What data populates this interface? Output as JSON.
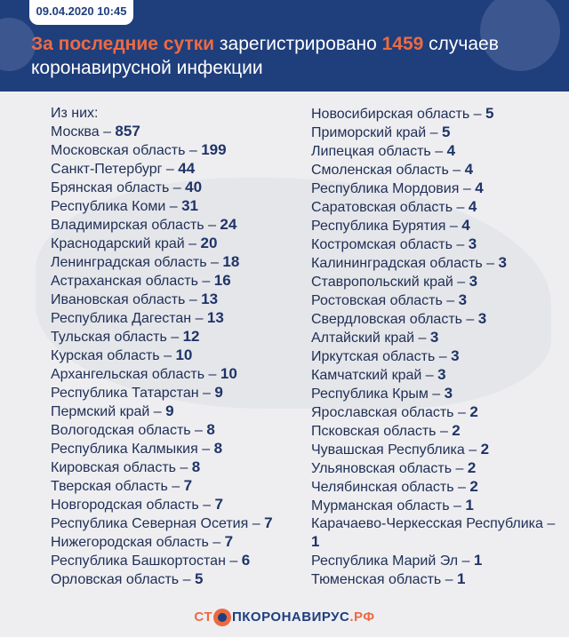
{
  "header": {
    "date": "09.04.2020 10:45",
    "title_accent": "За последние сутки",
    "title_mid": " зарегистрировано ",
    "count": "1459",
    "title_end": " случаев коронавирусной инфекции"
  },
  "intro": "Из них:",
  "left": [
    {
      "name": "Москва",
      "value": "857"
    },
    {
      "name": "Московская область",
      "value": "199"
    },
    {
      "name": "Санкт-Петербург",
      "value": "44"
    },
    {
      "name": "Брянская область",
      "value": "40"
    },
    {
      "name": "Республика Коми",
      "value": "31"
    },
    {
      "name": "Владимирская область",
      "value": "24"
    },
    {
      "name": "Краснодарский край",
      "value": "20"
    },
    {
      "name": "Ленинградская область",
      "value": "18"
    },
    {
      "name": "Астраханская область",
      "value": "16"
    },
    {
      "name": "Ивановская область",
      "value": "13"
    },
    {
      "name": "Республика Дагестан",
      "value": "13"
    },
    {
      "name": "Тульская область",
      "value": "12"
    },
    {
      "name": "Курская область",
      "value": "10"
    },
    {
      "name": "Архангельская область",
      "value": "10"
    },
    {
      "name": "Республика Татарстан",
      "value": "9"
    },
    {
      "name": "Пермский край",
      "value": "9"
    },
    {
      "name": "Вологодская область",
      "value": "8"
    },
    {
      "name": "Республика Калмыкия",
      "value": "8"
    },
    {
      "name": "Кировская область",
      "value": "8"
    },
    {
      "name": "Тверская область",
      "value": "7"
    },
    {
      "name": "Новгородская область",
      "value": "7"
    },
    {
      "name": "Республика Северная Осетия",
      "value": "7"
    },
    {
      "name": "Нижегородская область",
      "value": "7"
    },
    {
      "name": "Республика Башкортостан",
      "value": "6"
    },
    {
      "name": "Орловская область",
      "value": "5"
    }
  ],
  "right": [
    {
      "name": "Новосибирская область",
      "value": "5"
    },
    {
      "name": "Приморский край",
      "value": "5"
    },
    {
      "name": "Липецкая область",
      "value": "4"
    },
    {
      "name": "Смоленская область",
      "value": "4"
    },
    {
      "name": "Республика Мордовия",
      "value": "4"
    },
    {
      "name": "Саратовская область",
      "value": "4"
    },
    {
      "name": "Республика Бурятия",
      "value": "4"
    },
    {
      "name": "Костромская область",
      "value": "3"
    },
    {
      "name": "Калининградская область",
      "value": "3"
    },
    {
      "name": "Ставропольский край",
      "value": "3"
    },
    {
      "name": "Ростовская область",
      "value": "3"
    },
    {
      "name": "Свердловская область",
      "value": "3"
    },
    {
      "name": "Алтайский край",
      "value": "3"
    },
    {
      "name": "Иркутская область",
      "value": "3"
    },
    {
      "name": "Камчатский край",
      "value": "3"
    },
    {
      "name": "Республика Крым",
      "value": "3"
    },
    {
      "name": "Ярославская область",
      "value": "2"
    },
    {
      "name": "Псковская область",
      "value": "2"
    },
    {
      "name": "Чувашская Республика",
      "value": "2"
    },
    {
      "name": "Ульяновская область",
      "value": "2"
    },
    {
      "name": "Челябинская область",
      "value": "2"
    },
    {
      "name": "Мурманская область",
      "value": "1"
    },
    {
      "name": "Карачаево-Черкесская Республика",
      "value": "1"
    },
    {
      "name": "Республика Марий Эл",
      "value": "1"
    },
    {
      "name": "Тюменская область",
      "value": "1"
    }
  ],
  "footer": {
    "part1": "СТ",
    "part2": "ПКОРОНАВИРУС",
    "part3": ".РФ"
  },
  "colors": {
    "header": "#1f3e7c",
    "accent": "#ec6a43",
    "number": "#1f3467"
  }
}
